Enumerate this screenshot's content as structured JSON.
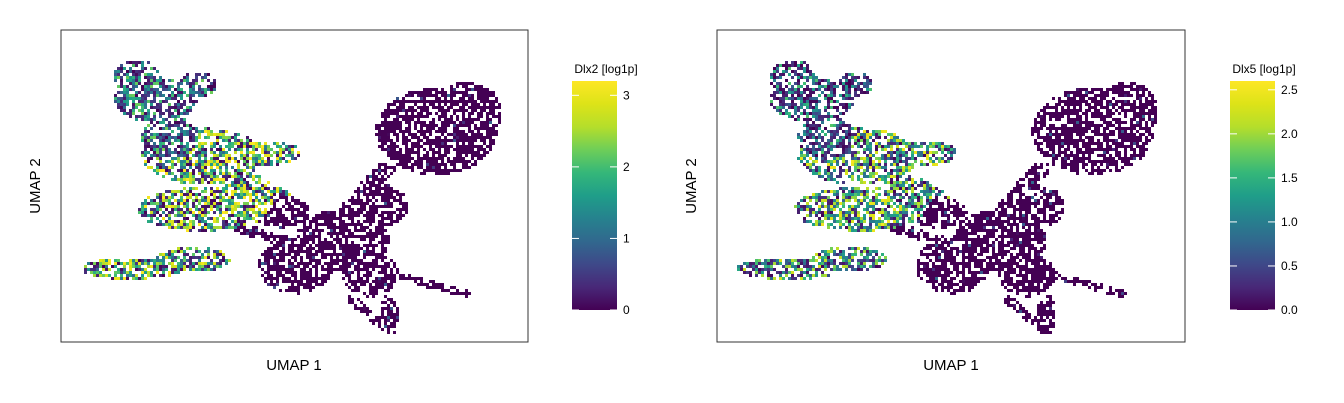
{
  "chart_data": [
    {
      "type": "scatter",
      "xlabel": "UMAP 1",
      "ylabel": "UMAP 2",
      "grid": false,
      "legend": "right",
      "colormap": "viridis",
      "colorbar": {
        "title": "Dlx2 [log1p]",
        "min": 0,
        "max": 3.2,
        "ticks": [
          0,
          1,
          2,
          3
        ],
        "tick_labels": [
          "0",
          "1",
          "2",
          "3"
        ]
      },
      "regions": [
        {
          "name": "upper-left cluster",
          "level": 0.35
        },
        {
          "name": "middle-left band",
          "level": 0.68
        },
        {
          "name": "lower-left arm",
          "level": 0.62
        },
        {
          "name": "central body",
          "level": 0.03
        },
        {
          "name": "right lobe",
          "level": 0.02
        }
      ]
    },
    {
      "type": "scatter",
      "xlabel": "UMAP 1",
      "ylabel": "UMAP 2",
      "grid": false,
      "legend": "right",
      "colormap": "viridis",
      "colorbar": {
        "title": "Dlx5 [log1p]",
        "min": 0,
        "max": 2.6,
        "ticks": [
          0,
          0.5,
          1,
          1.5,
          2,
          2.5
        ],
        "tick_labels": [
          "0.0",
          "0.5",
          "1.0",
          "1.5",
          "2.0",
          "2.5"
        ]
      },
      "regions": [
        {
          "name": "upper-left cluster",
          "level": 0.28
        },
        {
          "name": "middle-left band",
          "level": 0.6
        },
        {
          "name": "lower-left arm",
          "level": 0.52
        },
        {
          "name": "central body",
          "level": 0.03
        },
        {
          "name": "right lobe",
          "level": 0.02
        }
      ]
    }
  ]
}
